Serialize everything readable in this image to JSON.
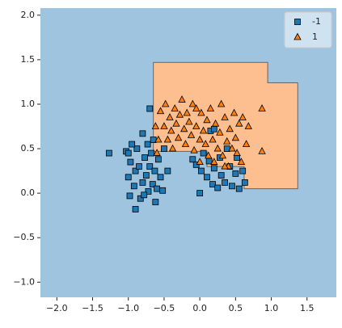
{
  "chart_data": {
    "type": "scatter",
    "xlim": [
      -2.23,
      1.91
    ],
    "ylim": [
      -1.17,
      2.08
    ],
    "xticks": [
      {
        "value": -2,
        "label": "−2.0"
      },
      {
        "value": -1.5,
        "label": "−1.5"
      },
      {
        "value": -1,
        "label": "−1.0"
      },
      {
        "value": -0.5,
        "label": "−0.5"
      },
      {
        "value": 0,
        "label": "0.0"
      },
      0.5,
      {
        "value": 1,
        "label": "1.0"
      },
      1.5
    ],
    "yticks": [
      {
        "value": -1,
        "label": "−1.0"
      },
      {
        "value": -0.5,
        "label": "−0.5"
      },
      {
        "value": 0,
        "label": "0.0"
      },
      0.5,
      {
        "value": 1,
        "label": "1.0"
      },
      1.5,
      {
        "value": 2,
        "label": "2.0"
      }
    ],
    "background_color": "#9ec4e0",
    "regions": [
      {
        "color": "#fdbf8f",
        "x": [
          -0.65,
          0.95,
          0.95,
          1.37,
          1.37,
          0.62,
          0.62,
          0.1,
          0.1,
          -0.65
        ],
        "y": [
          1.47,
          1.47,
          1.24,
          1.24,
          0.05,
          0.05,
          0.3,
          0.3,
          0.47,
          0.47
        ]
      }
    ],
    "legend": "upper right",
    "series": [
      {
        "name": "-1",
        "color": "#1f77b4",
        "marker": "square",
        "x": [
          -1.27,
          -1.03,
          -1.0,
          -1.0,
          -0.97,
          -0.98,
          -0.92,
          -0.9,
          -0.88,
          -0.85,
          -0.83,
          -0.8,
          -0.8,
          -0.77,
          -0.75,
          -0.73,
          -0.72,
          -0.7,
          -0.7,
          -0.68,
          -0.66,
          -0.65,
          -0.63,
          -0.62,
          -0.6,
          -0.58,
          -0.55,
          -0.52,
          -0.5,
          -0.45,
          -0.9,
          -0.95,
          -0.78,
          -0.1,
          -0.05,
          0.0,
          0.02,
          0.05,
          0.1,
          0.13,
          0.15,
          0.18,
          0.2,
          0.25,
          0.28,
          0.3,
          0.35,
          0.38,
          0.42,
          0.45,
          0.5,
          0.52,
          0.55,
          0.6,
          0.63,
          0.2
        ],
        "values": [
          0.45,
          0.47,
          0.45,
          0.18,
          0.35,
          -0.03,
          0.08,
          0.25,
          0.5,
          0.3,
          -0.06,
          0.67,
          0.12,
          0.4,
          0.2,
          0.55,
          0.02,
          0.95,
          0.3,
          0.45,
          0.1,
          0.6,
          0.25,
          -0.1,
          0.05,
          0.38,
          0.18,
          0.03,
          0.5,
          0.25,
          -0.18,
          0.55,
          -0.02,
          0.38,
          0.32,
          0.0,
          0.25,
          0.45,
          0.18,
          0.36,
          0.7,
          0.1,
          0.28,
          0.06,
          0.4,
          0.2,
          0.12,
          0.5,
          0.3,
          0.08,
          0.22,
          0.4,
          0.05,
          0.25,
          0.12,
          0.72
        ]
      },
      {
        "name": "1",
        "color": "#ff7f0e",
        "marker": "triangle",
        "x": [
          -0.55,
          -0.5,
          -0.48,
          -0.45,
          -0.42,
          -0.4,
          -0.38,
          -0.35,
          -0.33,
          -0.3,
          -0.28,
          -0.25,
          -0.22,
          -0.2,
          -0.18,
          -0.15,
          -0.12,
          -0.1,
          -0.08,
          -0.05,
          -0.58,
          -0.62,
          -0.6,
          0.0,
          0.02,
          0.05,
          0.08,
          0.1,
          0.12,
          0.15,
          0.18,
          0.2,
          0.22,
          0.25,
          0.28,
          0.3,
          0.32,
          0.35,
          0.38,
          0.4,
          0.42,
          0.45,
          0.48,
          0.5,
          0.52,
          0.55,
          0.58,
          0.6,
          0.65,
          0.68,
          0.87,
          0.87,
          -0.05,
          0.0,
          0.35
        ],
        "values": [
          0.92,
          0.75,
          1.0,
          0.6,
          0.85,
          0.7,
          0.5,
          0.95,
          0.78,
          0.62,
          0.88,
          1.05,
          0.72,
          0.55,
          0.9,
          0.8,
          0.65,
          1.0,
          0.48,
          0.75,
          0.6,
          0.75,
          0.45,
          0.6,
          0.9,
          0.7,
          0.55,
          0.82,
          0.42,
          0.95,
          0.6,
          0.35,
          0.78,
          0.5,
          0.68,
          1.0,
          0.42,
          0.85,
          0.58,
          0.3,
          0.72,
          0.5,
          0.9,
          0.62,
          0.45,
          0.78,
          0.35,
          0.85,
          0.55,
          0.75,
          0.95,
          0.47,
          0.95,
          0.35,
          0.3
        ]
      }
    ]
  }
}
